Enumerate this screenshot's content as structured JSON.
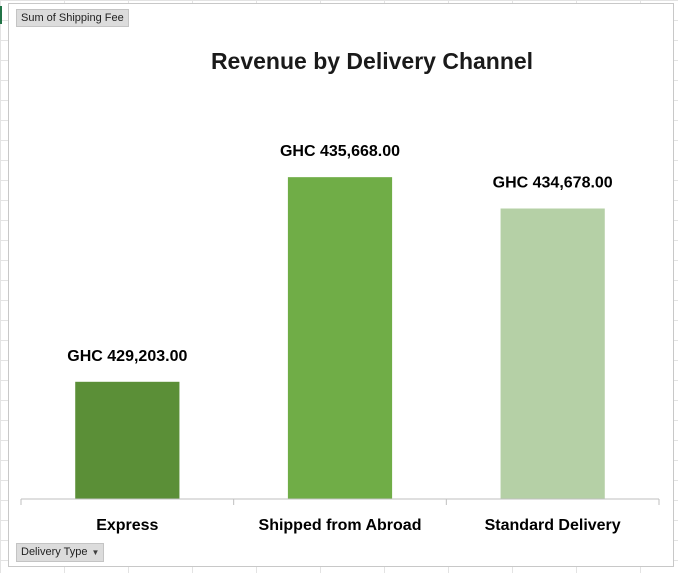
{
  "pivot": {
    "value_field_label": "Sum of Shipping Fee",
    "axis_field_label": "Delivery Type",
    "axis_field_icon": "dropdown-arrow-icon"
  },
  "chart_data": {
    "type": "bar",
    "title": "Revenue by Delivery Channel",
    "xlabel": "",
    "ylabel": "",
    "categories": [
      "Express",
      "Shipped from Abroad",
      "Standard Delivery"
    ],
    "values": [
      429203.0,
      435668.0,
      434678.0
    ],
    "data_labels": [
      "GHC 429,203.00",
      "GHC 435,668.00",
      "GHC 434,678.00"
    ],
    "colors": [
      "#5b8f37",
      "#70ad47",
      "#b5d0a6"
    ],
    "ylim": [
      425500,
      437000
    ],
    "grid": false,
    "legend": "none"
  }
}
